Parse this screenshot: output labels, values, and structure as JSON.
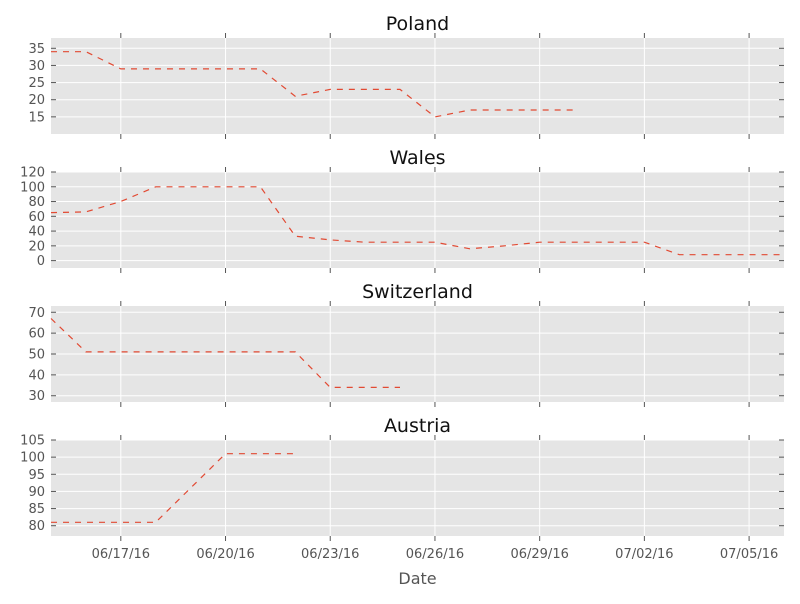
{
  "chart_data": {
    "type": "line",
    "figure": {
      "x_axis_label": "Date",
      "x_ticks": [
        "06/17/16",
        "06/20/16",
        "06/23/16",
        "06/26/16",
        "06/29/16",
        "07/02/16",
        "07/05/16"
      ],
      "xlim": [
        "06/15/16",
        "07/06/16"
      ],
      "grid": true,
      "line_color": "#e24a33",
      "panel_background": "#e5e5e5",
      "line_style": "dashed"
    },
    "panels": [
      {
        "title": "Poland",
        "ylim": [
          10,
          38
        ],
        "yticks": [
          15,
          20,
          25,
          30,
          35
        ],
        "series": [
          {
            "x": [
              "06/15/16",
              "06/16/16",
              "06/17/16",
              "06/18/16",
              "06/19/16",
              "06/20/16",
              "06/21/16",
              "06/22/16",
              "06/23/16",
              "06/24/16",
              "06/25/16",
              "06/26/16",
              "06/27/16",
              "06/28/16",
              "06/29/16",
              "06/30/16"
            ],
            "y": [
              34,
              34,
              29,
              29,
              29,
              29,
              29,
              21,
              23,
              23,
              23,
              15,
              17,
              17,
              17,
              17
            ]
          }
        ]
      },
      {
        "title": "Wales",
        "ylim": [
          -10,
          120
        ],
        "yticks": [
          0,
          20,
          40,
          60,
          80,
          100,
          120
        ],
        "series": [
          {
            "x": [
              "06/15/16",
              "06/16/16",
              "06/17/16",
              "06/18/16",
              "06/19/16",
              "06/20/16",
              "06/21/16",
              "06/22/16",
              "06/23/16",
              "06/24/16",
              "06/25/16",
              "06/26/16",
              "06/27/16",
              "06/28/16",
              "06/29/16",
              "06/30/16",
              "07/01/16",
              "07/02/16",
              "07/03/16",
              "07/04/16",
              "07/05/16",
              "07/06/16"
            ],
            "y": [
              65,
              66,
              80,
              100,
              100,
              100,
              100,
              33,
              28,
              25,
              25,
              25,
              16,
              20,
              25,
              25,
              25,
              25,
              8,
              8,
              8,
              8
            ]
          }
        ]
      },
      {
        "title": "Switzerland",
        "ylim": [
          27,
          73
        ],
        "yticks": [
          30,
          40,
          50,
          60,
          70
        ],
        "series": [
          {
            "x": [
              "06/15/16",
              "06/16/16",
              "06/17/16",
              "06/18/16",
              "06/19/16",
              "06/20/16",
              "06/21/16",
              "06/22/16",
              "06/23/16",
              "06/24/16",
              "06/25/16"
            ],
            "y": [
              67,
              51,
              51,
              51,
              51,
              51,
              51,
              51,
              34,
              34,
              34
            ]
          }
        ]
      },
      {
        "title": "Austria",
        "ylim": [
          77,
          105
        ],
        "yticks": [
          80,
          85,
          90,
          95,
          100,
          105
        ],
        "series": [
          {
            "x": [
              "06/15/16",
              "06/16/16",
              "06/17/16",
              "06/18/16",
              "06/19/16",
              "06/20/16",
              "06/21/16",
              "06/22/16"
            ],
            "y": [
              81,
              81,
              81,
              81,
              91,
              101,
              101,
              101
            ]
          }
        ]
      }
    ]
  }
}
